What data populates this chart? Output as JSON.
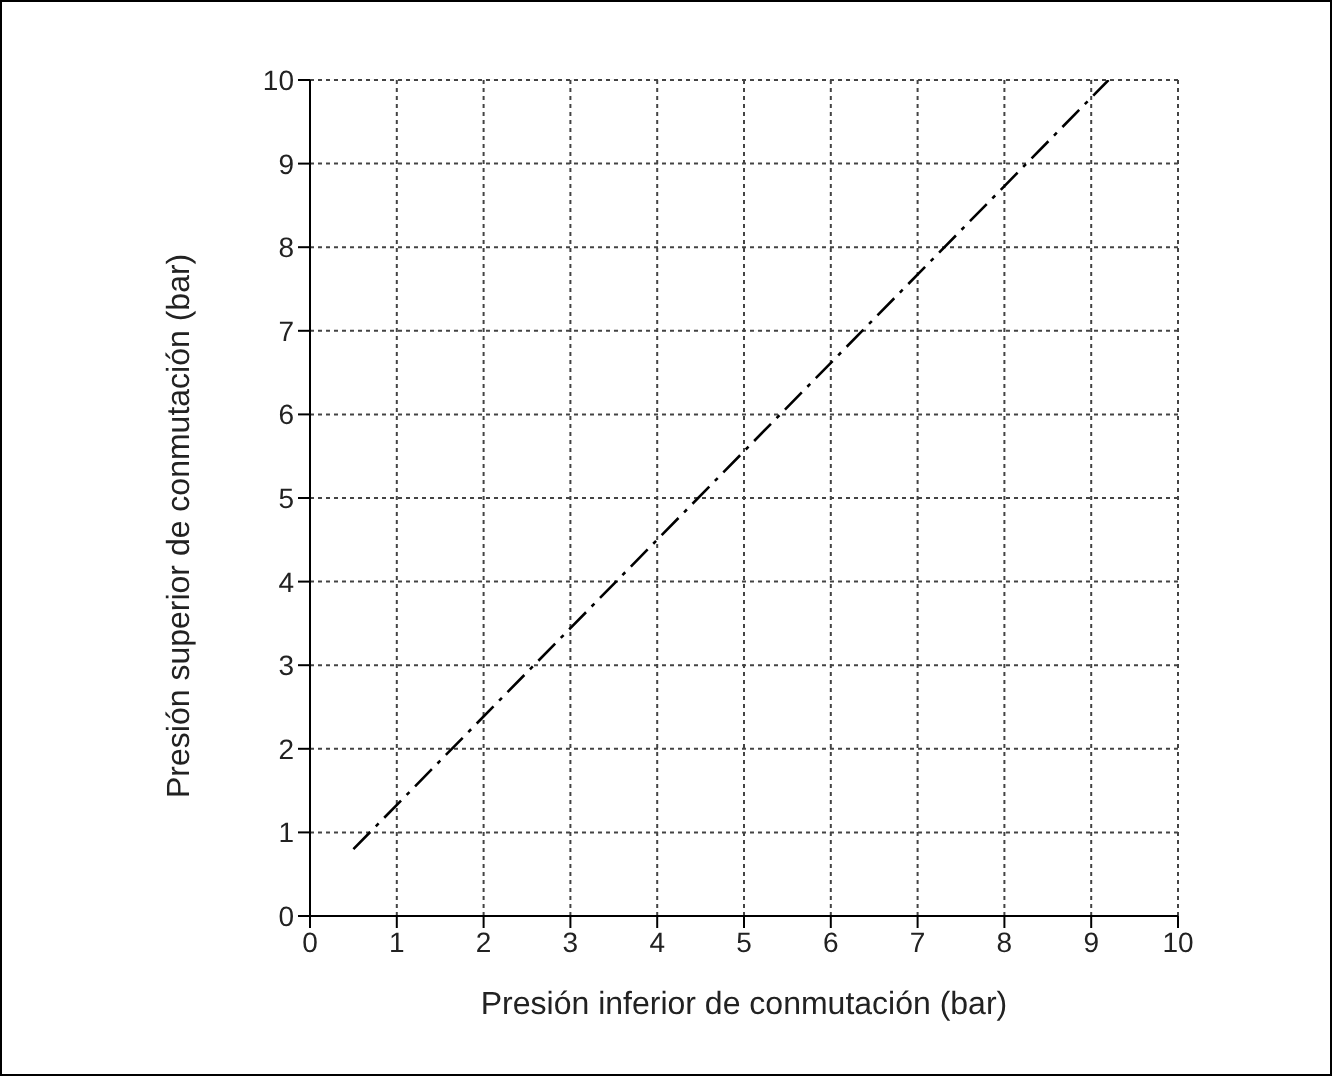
{
  "chart_data": {
    "type": "line",
    "xlabel": "Presión inferior de conmutación (bar)",
    "ylabel": "Presión superior de conmutación (bar)",
    "x": [
      0.5,
      9.2
    ],
    "series": [
      {
        "color": "#000000",
        "values": [
          0.8,
          10
        ]
      }
    ],
    "xlim": [
      0,
      10
    ],
    "ylim": [
      0,
      10
    ],
    "xticks": [
      0,
      1,
      2,
      3,
      4,
      5,
      6,
      7,
      8,
      9,
      10
    ],
    "yticks": [
      0,
      1,
      2,
      3,
      4,
      5,
      6,
      7,
      8,
      9,
      10
    ],
    "grid": true,
    "legend": false,
    "marker": "none",
    "line_style": "dashed"
  }
}
